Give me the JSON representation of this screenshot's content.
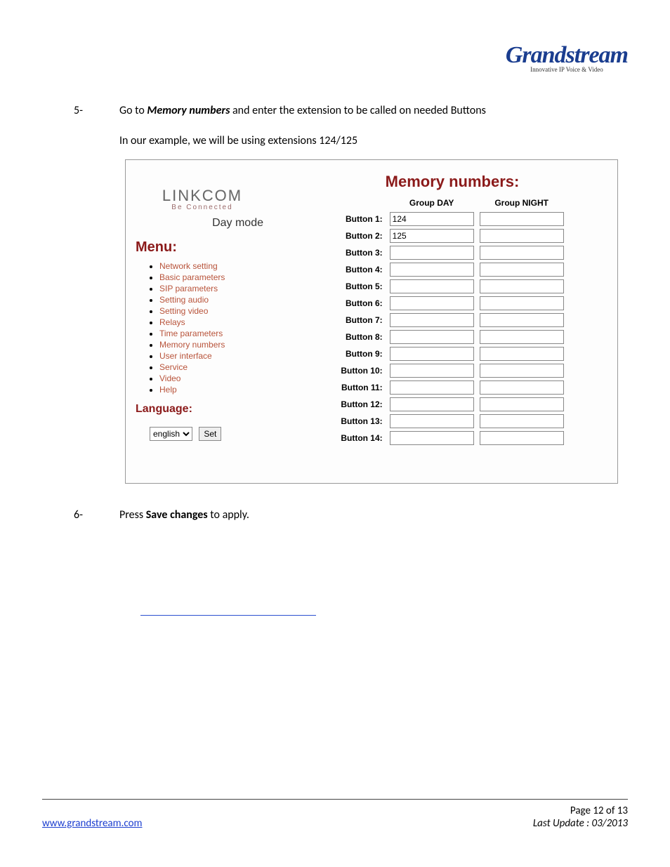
{
  "logo": {
    "brand": "Grandstream",
    "tagline": "Innovative IP Voice & Video"
  },
  "step5": {
    "num": "5-",
    "prefix": "Go to ",
    "bold": "Memory numbers",
    "suffix": " and enter the extension to be called on needed Buttons",
    "line2": "In our example, we will be using extensions 124/125"
  },
  "step6": {
    "num": "6-",
    "prefix": "Press ",
    "bold": "Save changes",
    "suffix": " to apply."
  },
  "screenshot": {
    "linkcom": "LINKCOM",
    "beconnected": "Be Connected",
    "daymode": "Day mode",
    "menu_header": "Menu:",
    "menu_items": [
      "Network setting",
      "Basic parameters",
      "SIP parameters",
      "Setting audio",
      "Setting video",
      "Relays",
      "Time parameters",
      "Memory numbers",
      "User interface",
      "Service",
      "Video",
      "Help"
    ],
    "lang_header": "Language:",
    "lang_select": "english",
    "lang_set": "Set",
    "mem_title": "Memory numbers:",
    "col_day": "Group DAY",
    "col_night": "Group NIGHT",
    "buttons": [
      {
        "label": "Button 1:",
        "day": "124",
        "night": ""
      },
      {
        "label": "Button 2:",
        "day": "125",
        "night": ""
      },
      {
        "label": "Button 3:",
        "day": "",
        "night": ""
      },
      {
        "label": "Button 4:",
        "day": "",
        "night": ""
      },
      {
        "label": "Button 5:",
        "day": "",
        "night": ""
      },
      {
        "label": "Button 6:",
        "day": "",
        "night": ""
      },
      {
        "label": "Button 7:",
        "day": "",
        "night": ""
      },
      {
        "label": "Button 8:",
        "day": "",
        "night": ""
      },
      {
        "label": "Button 9:",
        "day": "",
        "night": ""
      },
      {
        "label": "Button 10:",
        "day": "",
        "night": ""
      },
      {
        "label": "Button 11:",
        "day": "",
        "night": ""
      },
      {
        "label": "Button 12:",
        "day": "",
        "night": ""
      },
      {
        "label": "Button 13:",
        "day": "",
        "night": ""
      },
      {
        "label": "Button 14:",
        "day": "",
        "night": ""
      }
    ]
  },
  "footer": {
    "page": "Page 12 of 13",
    "update": "Last Update : 03/2013",
    "url": "www.grandstream.com"
  },
  "colors": {
    "link_blue": "#1a3dcf",
    "rule_blue": "#2a4fcf",
    "dark_red": "#8b1a1a",
    "menu_link": "#b8533a",
    "logo_blue": "#1a3d8f",
    "text": "#000000",
    "border": "#888888",
    "background": "#ffffff"
  }
}
